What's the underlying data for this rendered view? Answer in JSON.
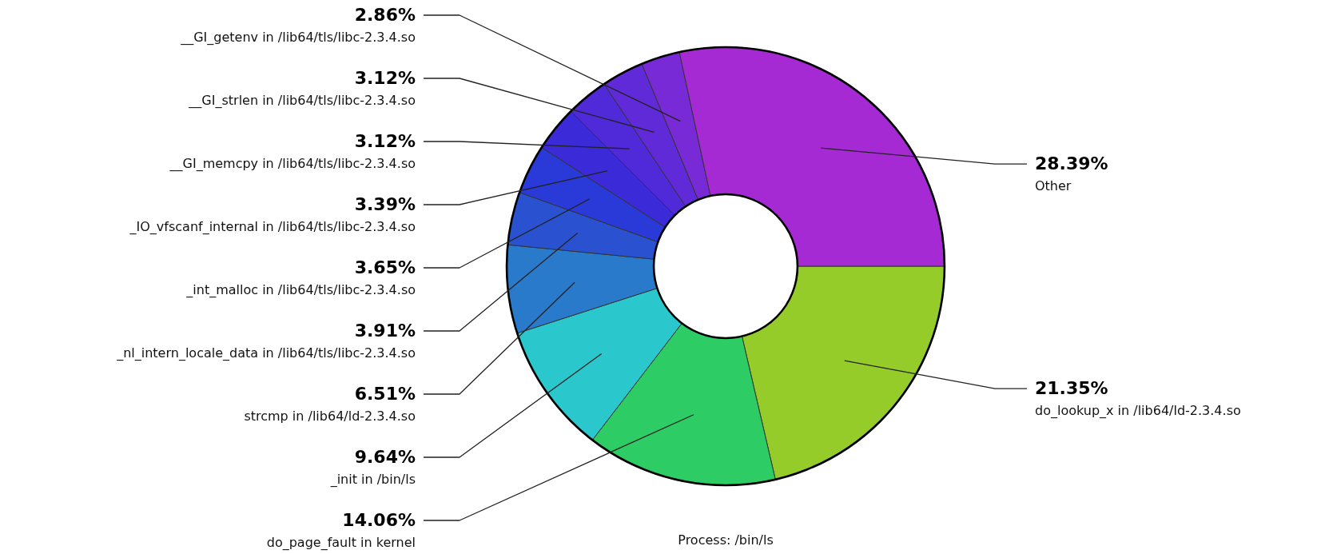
{
  "chart_data": {
    "type": "donut",
    "title": "Process: /bin/ls",
    "categories": [
      "do_lookup_x in /lib64/ld-2.3.4.so",
      "do_page_fault in kernel",
      "_init in /bin/ls",
      "strcmp in /lib64/ld-2.3.4.so",
      "_nl_intern_locale_data in /lib64/tls/libc-2.3.4.so",
      "_int_malloc in /lib64/tls/libc-2.3.4.so",
      "_IO_vfscanf_internal in /lib64/tls/libc-2.3.4.so",
      "__GI_memcpy in /lib64/tls/libc-2.3.4.so",
      "__GI_strlen in /lib64/tls/libc-2.3.4.so",
      "__GI_getenv in /lib64/tls/libc-2.3.4.so",
      "Other"
    ],
    "values": [
      21.35,
      14.06,
      9.64,
      6.51,
      3.91,
      3.65,
      3.39,
      3.12,
      3.12,
      2.86,
      28.39
    ],
    "value_labels": [
      "21.35%",
      "14.06%",
      "9.64%",
      "6.51%",
      "3.91%",
      "3.65%",
      "3.39%",
      "3.12%",
      "3.12%",
      "2.86%",
      "28.39%"
    ],
    "colors": [
      "#96cc2a",
      "#2ecc64",
      "#2ac8cc",
      "#2a7acc",
      "#2a52d0",
      "#2a3ad8",
      "#3a2ad8",
      "#502ad8",
      "#602ad8",
      "#782ad6",
      "#a52ad3"
    ]
  }
}
